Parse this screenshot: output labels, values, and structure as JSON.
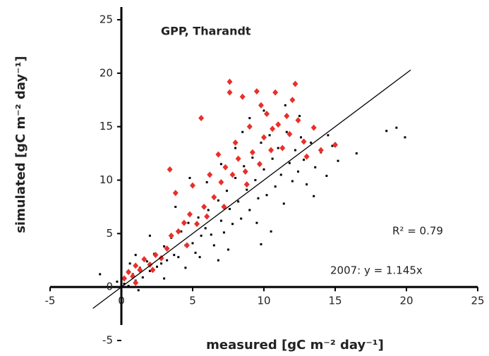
{
  "chart_data": {
    "type": "scatter",
    "title": "GPP, Tharandt",
    "x_label": "measured [gC m⁻² day⁻¹]",
    "y_label": "simulated [gC m⁻² day⁻¹]",
    "annotations": [
      "R² = 0.79",
      "2007: y = 1.145x"
    ],
    "annotation_colors": [
      "#222222",
      "#e8302a"
    ],
    "xlim": [
      -5,
      25
    ],
    "ylim": [
      -5,
      25
    ],
    "xticks": [
      -5,
      0,
      5,
      10,
      15,
      20,
      25
    ],
    "yticks": [
      -5,
      0,
      5,
      10,
      15,
      20,
      25
    ],
    "reference_line": {
      "x": [
        -2,
        20.3
      ],
      "y": [
        -2,
        20.3
      ]
    },
    "series": [
      {
        "color": "#000000",
        "marker": "dot",
        "x": [
          0.2,
          0.5,
          0.8,
          1.0,
          1.3,
          1.5,
          1.8,
          2.0,
          2.3,
          2.5,
          2.8,
          3.0,
          3.2,
          3.5,
          3.7,
          4.0,
          4.2,
          4.5,
          4.7,
          5.0,
          5.2,
          5.4,
          5.6,
          5.9,
          6.1,
          6.3,
          6.5,
          6.8,
          7.0,
          7.2,
          7.4,
          7.6,
          7.8,
          8.0,
          8.2,
          8.4,
          8.6,
          8.8,
          9.0,
          9.2,
          9.4,
          9.6,
          9.8,
          10.0,
          10.2,
          10.4,
          10.6,
          10.8,
          11.0,
          11.2,
          11.4,
          11.6,
          11.8,
          12.0,
          12.2,
          12.4,
          12.6,
          12.8,
          13.0,
          13.3,
          13.6,
          14.0,
          14.4,
          14.8,
          15.2,
          16.5,
          19.3,
          19.9,
          18.6,
          5.5,
          7.5,
          9.5,
          3.8,
          6.0,
          8.0,
          9.0,
          10.0,
          11.5,
          4.8,
          2.0,
          6.8,
          10.5,
          1.2,
          -0.3,
          -1.5,
          0.0,
          12.5,
          13.5,
          7.0,
          3.0,
          14.5,
          1.0,
          0.6,
          4.5,
          8.5,
          9.8
        ],
        "y": [
          0.3,
          0.1,
          1.2,
          0.6,
          1.8,
          0.9,
          2.4,
          1.5,
          3.1,
          1.9,
          2.2,
          3.8,
          2.5,
          4.6,
          3.0,
          2.8,
          5.2,
          3.9,
          6.0,
          4.1,
          3.2,
          6.5,
          4.8,
          5.5,
          7.2,
          4.9,
          3.9,
          8.1,
          6.2,
          5.1,
          9.0,
          7.3,
          5.9,
          10.2,
          8.0,
          6.4,
          11.3,
          9.1,
          7.2,
          12.1,
          10.0,
          8.3,
          13.5,
          11.0,
          8.6,
          14.2,
          12.0,
          9.4,
          13.0,
          10.5,
          7.8,
          14.5,
          11.6,
          9.9,
          12.8,
          10.8,
          14.0,
          11.9,
          9.6,
          13.5,
          11.2,
          12.6,
          10.4,
          13.2,
          11.8,
          12.5,
          14.9,
          14.0,
          14.6,
          2.8,
          3.5,
          6.0,
          7.5,
          9.8,
          13.0,
          15.8,
          16.5,
          17.0,
          10.2,
          4.8,
          2.5,
          5.2,
          -0.3,
          0.5,
          1.2,
          -0.5,
          16.0,
          8.5,
          11.5,
          0.8,
          14.2,
          3.0,
          2.2,
          1.8,
          14.5,
          4.0
        ]
      },
      {
        "color": "#e8302a",
        "marker": "diamond",
        "x": [
          0.2,
          0.5,
          0.8,
          1.0,
          1.3,
          1.6,
          2.0,
          2.4,
          2.8,
          3.2,
          3.5,
          3.4,
          3.8,
          4.0,
          4.4,
          4.8,
          5.0,
          5.3,
          5.6,
          5.8,
          6.2,
          6.5,
          6.8,
          7.0,
          7.3,
          7.6,
          7.6,
          7.8,
          8.0,
          8.2,
          8.5,
          8.7,
          9.0,
          9.2,
          9.5,
          9.7,
          10.0,
          10.2,
          10.5,
          10.8,
          11.0,
          11.3,
          11.6,
          11.8,
          12.2,
          12.4,
          12.8,
          13.0,
          14.0,
          15.0,
          2.2,
          1.0,
          4.6,
          6.0,
          7.2,
          8.8,
          12.0,
          9.8,
          10.6,
          13.5
        ],
        "y": [
          0.8,
          1.4,
          1.0,
          2.0,
          1.6,
          2.6,
          2.1,
          3.0,
          2.7,
          3.6,
          4.8,
          11.0,
          8.8,
          5.2,
          6.0,
          6.8,
          9.5,
          5.9,
          15.8,
          7.5,
          10.5,
          8.4,
          12.4,
          9.8,
          11.2,
          19.2,
          18.2,
          10.5,
          13.5,
          12.0,
          17.8,
          10.8,
          15.0,
          12.6,
          18.3,
          11.5,
          14.0,
          16.2,
          12.8,
          18.2,
          15.2,
          13.0,
          16.0,
          14.3,
          19.0,
          15.6,
          13.6,
          12.2,
          12.8,
          13.3,
          1.6,
          0.4,
          3.9,
          6.6,
          7.5,
          9.6,
          17.5,
          17.0,
          14.8,
          14.9
        ]
      }
    ]
  }
}
